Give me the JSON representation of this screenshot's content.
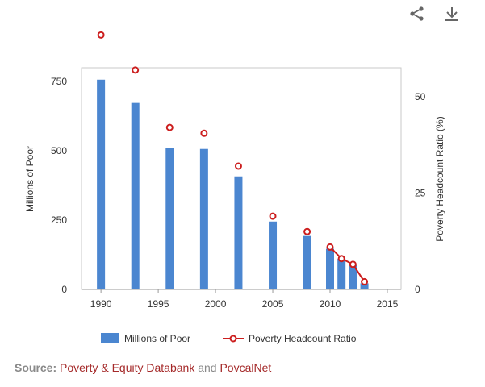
{
  "toolbar": {
    "share_icon": "share-icon",
    "download_icon": "download-icon"
  },
  "chart_data": {
    "type": "bar",
    "x_axis": {
      "min": 1988.3,
      "max": 2016.2,
      "ticks": [
        1990,
        1995,
        2000,
        2005,
        2010,
        2015
      ]
    },
    "y_left": {
      "label": "Millions of Poor",
      "min": 0,
      "max": 800,
      "ticks": [
        0,
        250,
        500,
        750
      ]
    },
    "y_right": {
      "label": "Poverty Headcount Ratio (%)",
      "min": 0,
      "max": 57.5,
      "ticks": [
        0,
        25,
        50
      ]
    },
    "series": [
      {
        "name": "Millions of Poor",
        "type": "bar",
        "axis": "left",
        "color": "#4b86d0",
        "x": [
          1990,
          1993,
          1996,
          1999,
          2002,
          2005,
          2008,
          2010,
          2011,
          2012,
          2013
        ],
        "values": [
          757,
          673,
          511,
          507,
          408,
          245,
          193,
          147,
          111,
          87,
          22
        ]
      },
      {
        "name": "Poverty Headcount Ratio",
        "type": "line",
        "axis": "right",
        "color": "#cc1e1e",
        "x": [
          1990,
          1993,
          1996,
          1999,
          2002,
          2005,
          2008,
          2010,
          2011,
          2012,
          2013
        ],
        "values": [
          66.0,
          56.9,
          42.0,
          40.5,
          32.0,
          19.0,
          15.0,
          11.0,
          8.0,
          6.5,
          2.0
        ],
        "connected_from": 2010
      }
    ],
    "legend": {
      "placement": "bottom",
      "items": [
        "Millions of Poor",
        "Poverty Headcount Ratio"
      ]
    }
  },
  "source": {
    "label": "Source:",
    "link1": "Poverty & Equity Databank",
    "conjunction": "and",
    "link2": "PovcalNet"
  }
}
